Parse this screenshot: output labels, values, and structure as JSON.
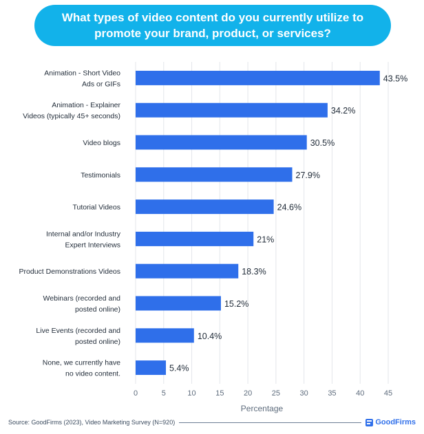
{
  "title": "What types of video content do you currently utilize to promote your brand, product, or services?",
  "footer": {
    "source": "Source: GoodFirms (2023), Video Marketing Survey (N=920)",
    "brand": "GoodFirms"
  },
  "colors": {
    "title_bg": "#12b2ea",
    "bar": "#2f6fea",
    "brand": "#2f6fea"
  },
  "chart_data": {
    "type": "bar",
    "orientation": "horizontal",
    "categories": [
      [
        "Animation - Short Video",
        "Ads or GIFs"
      ],
      [
        "Animation - Explainer",
        "Videos (typically 45+ seconds)"
      ],
      [
        "Video blogs"
      ],
      [
        "Testimonials"
      ],
      [
        "Tutorial Videos"
      ],
      [
        "Internal and/or Industry",
        "Expert Interviews"
      ],
      [
        "Product Demonstrations Videos"
      ],
      [
        "Webinars (recorded and",
        "posted online)"
      ],
      [
        "Live Events (recorded and",
        "posted online)"
      ],
      [
        "None, we currently have",
        "no video content."
      ]
    ],
    "values": [
      43.5,
      34.2,
      30.5,
      27.9,
      24.6,
      21,
      18.3,
      15.2,
      10.4,
      5.4
    ],
    "value_labels": [
      "43.5%",
      "34.2%",
      "30.5%",
      "27.9%",
      "24.6%",
      "21%",
      "18.3%",
      "15.2%",
      "10.4%",
      "5.4%"
    ],
    "xlabel": "Percentage",
    "xlim": [
      0,
      45
    ],
    "xticks": [
      0,
      5,
      10,
      15,
      20,
      25,
      30,
      35,
      40,
      45
    ],
    "grid": true
  }
}
